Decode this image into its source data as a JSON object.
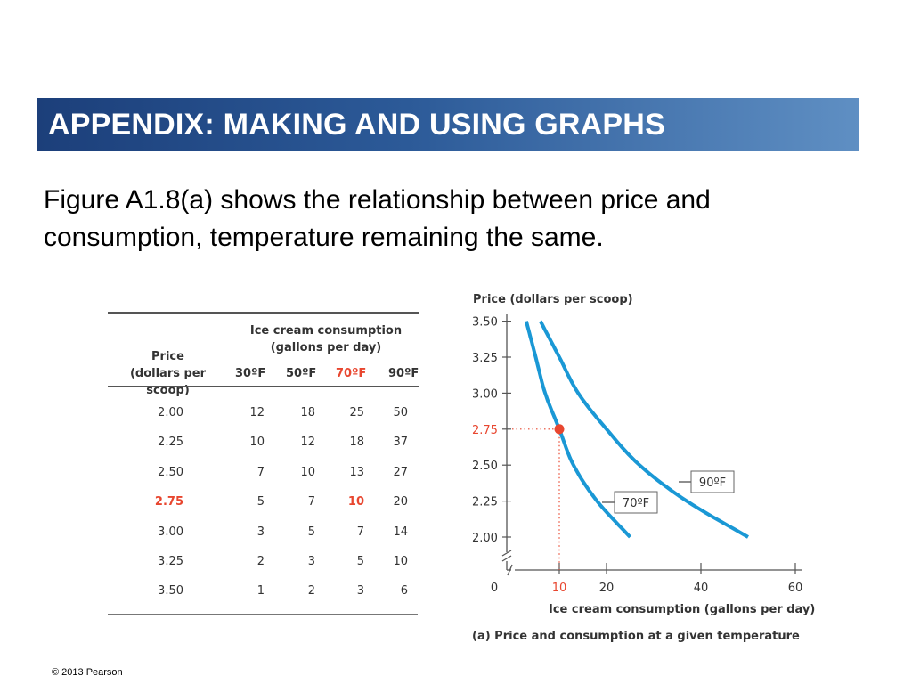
{
  "header": {
    "title": "APPENDIX: MAKING AND USING GRAPHS"
  },
  "body": {
    "text": "Figure A1.8(a)  shows the relationship between price and consumption, temperature remaining the same."
  },
  "footer": {
    "copyright": "© 2013 Pearson"
  },
  "table": {
    "price_header": [
      "Price",
      "(dollars per scoop)"
    ],
    "group_header": [
      "Ice cream consumption",
      "(gallons per day)"
    ],
    "columns": [
      "30ºF",
      "50ºF",
      "70ºF",
      "90ºF"
    ],
    "highlight_column": 2,
    "highlight_row": 3,
    "rows": [
      {
        "price": "2.00",
        "values": [
          "12",
          "18",
          "25",
          "50"
        ]
      },
      {
        "price": "2.25",
        "values": [
          "10",
          "12",
          "18",
          "37"
        ]
      },
      {
        "price": "2.50",
        "values": [
          "7",
          "10",
          "13",
          "27"
        ]
      },
      {
        "price": "2.75",
        "values": [
          "5",
          "7",
          "10",
          "20"
        ]
      },
      {
        "price": "3.00",
        "values": [
          "3",
          "5",
          "7",
          "14"
        ]
      },
      {
        "price": "3.25",
        "values": [
          "2",
          "3",
          "5",
          "10"
        ]
      },
      {
        "price": "3.50",
        "values": [
          "1",
          "2",
          "3",
          "6"
        ]
      }
    ]
  },
  "colors": {
    "curve": "#1a98d5",
    "highlight": "#e8462f",
    "title_bar_start": "#1c3f7a",
    "title_bar_end": "#5f8fc3"
  },
  "chart_data": {
    "type": "line",
    "ylabel": "Price (dollars per scoop)",
    "xlabel": "Ice cream consumption (gallons per day)",
    "caption": "(a)  Price and consumption at a given temperature",
    "x_ticks": [
      "0",
      "10",
      "20",
      "40",
      "60"
    ],
    "y_ticks": [
      "2.00",
      "2.25",
      "2.50",
      "2.75",
      "3.00",
      "3.25",
      "3.50"
    ],
    "xlim": [
      0,
      60
    ],
    "ylim": [
      2.0,
      3.5
    ],
    "axis_breaks": true,
    "series": [
      {
        "name": "70ºF",
        "x": [
          3,
          5,
          7,
          10,
          13,
          18,
          25
        ],
        "y": [
          3.5,
          3.25,
          3.0,
          2.75,
          2.5,
          2.25,
          2.0
        ]
      },
      {
        "name": "90ºF",
        "x": [
          6,
          10,
          14,
          20,
          27,
          37,
          50
        ],
        "y": [
          3.5,
          3.25,
          3.0,
          2.75,
          2.5,
          2.25,
          2.0
        ]
      }
    ],
    "highlight_point": {
      "x": 10,
      "y": 2.75,
      "x_label": "10",
      "y_label": "2.75"
    }
  }
}
